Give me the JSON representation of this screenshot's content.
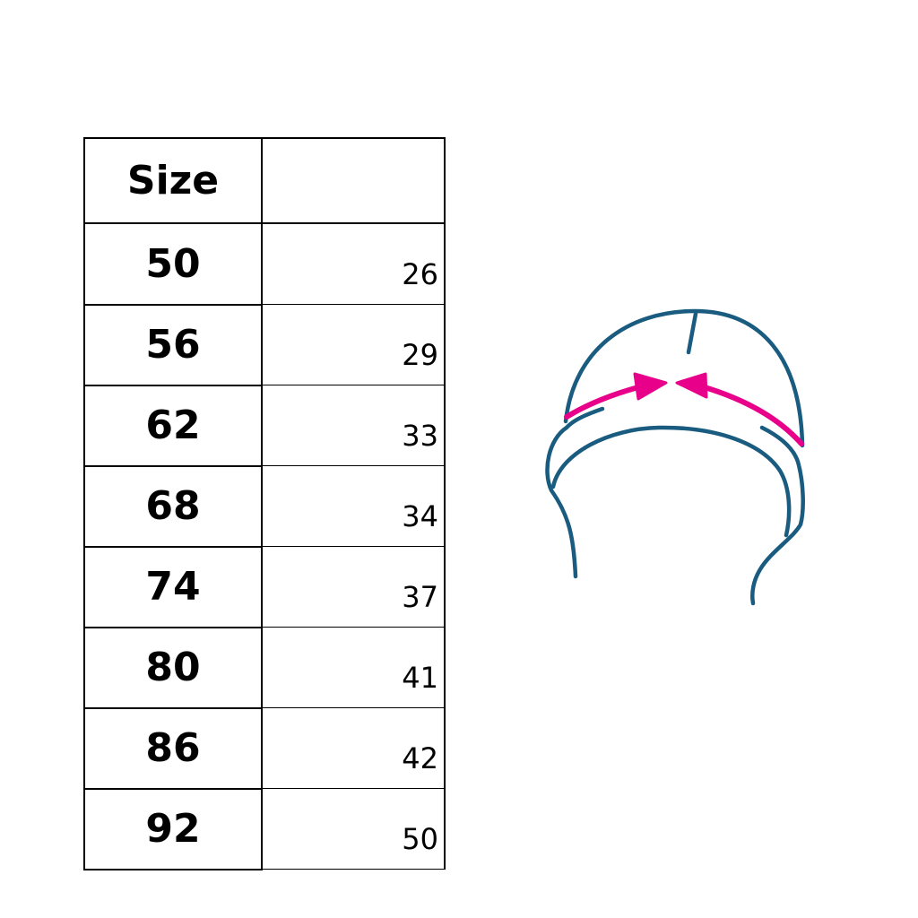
{
  "table": {
    "header": [
      "Size",
      ""
    ],
    "rows": [
      {
        "size": "50",
        "value": "26"
      },
      {
        "size": "56",
        "value": "29"
      },
      {
        "size": "62",
        "value": "33"
      },
      {
        "size": "68",
        "value": "34"
      },
      {
        "size": "74",
        "value": "37"
      },
      {
        "size": "80",
        "value": "41"
      },
      {
        "size": "86",
        "value": "42"
      },
      {
        "size": "92",
        "value": "50"
      }
    ]
  },
  "diagram": {
    "subject": "hat-circumference",
    "colors": {
      "outline": "#1a5b80",
      "arrow": "#e8008a"
    }
  }
}
